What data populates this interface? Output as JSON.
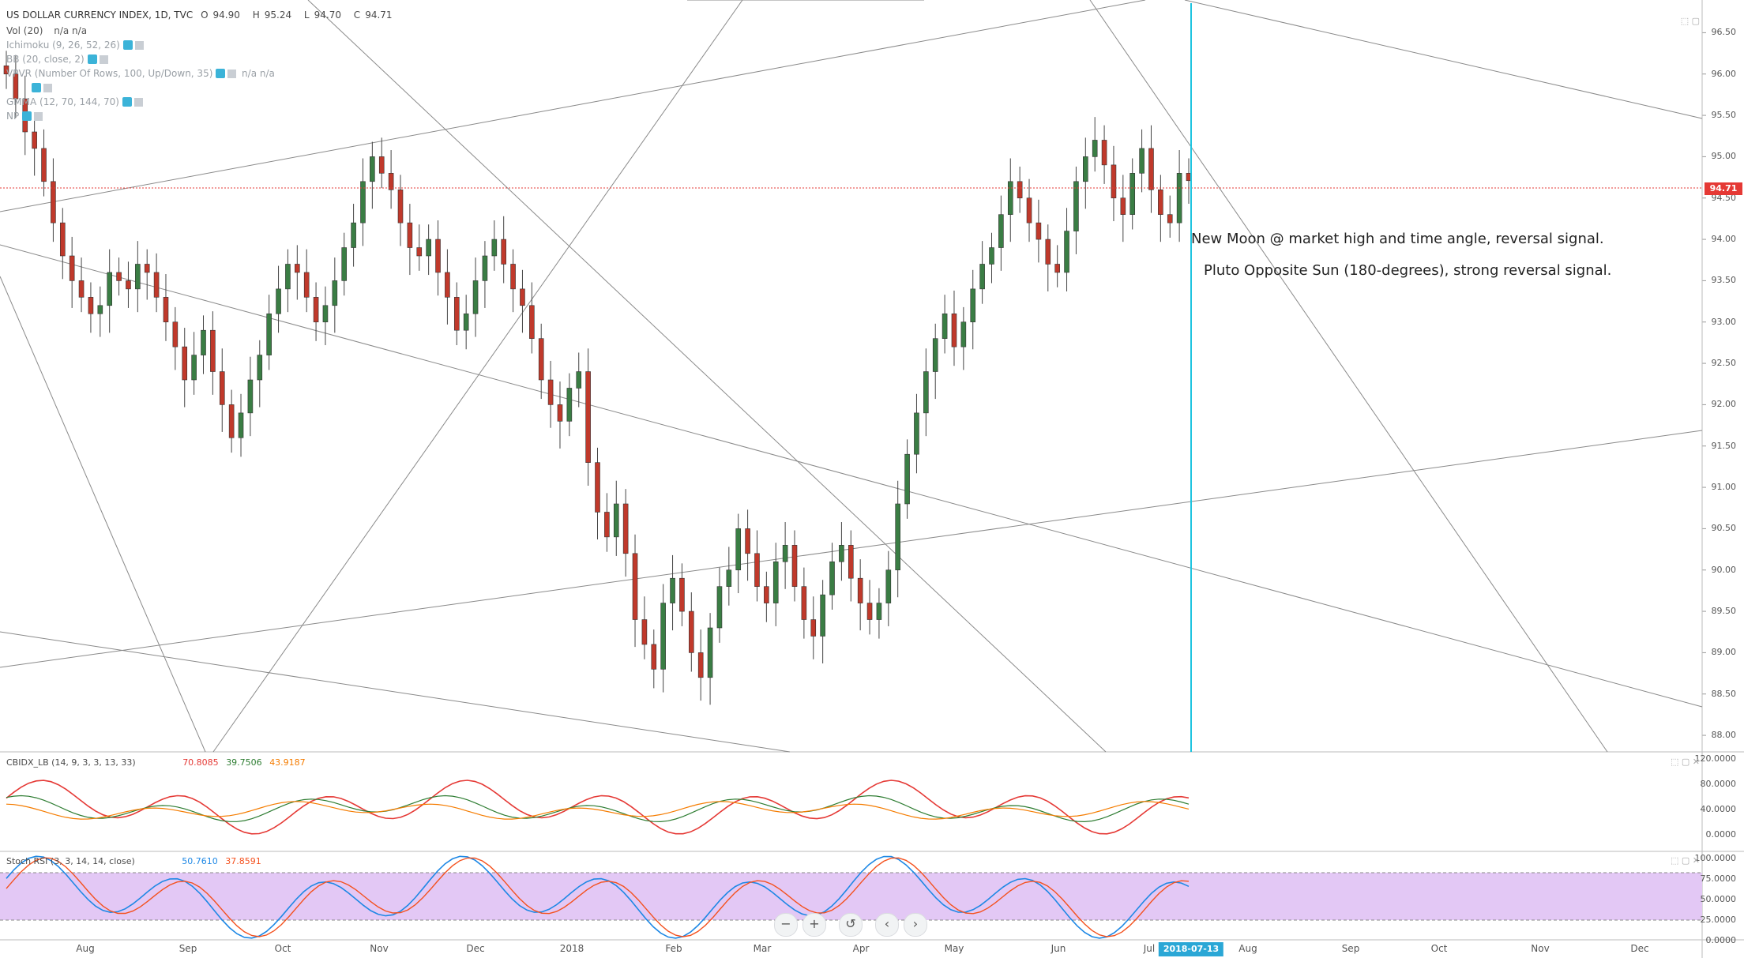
{
  "header": {
    "symbol": "US DOLLAR CURRENCY INDEX, 1D, TVC",
    "open_label": "O",
    "open": "94.90",
    "high_label": "H",
    "high": "95.24",
    "low_label": "L",
    "low": "94.70",
    "close_label": "C",
    "close": "94.71"
  },
  "indicators": [
    {
      "label": "Vol (20)",
      "values": "n/a  n/a"
    },
    {
      "label": "Ichimoku (9, 26, 52, 26)",
      "values": ""
    },
    {
      "label": "BB (20, close, 2)",
      "values": ""
    },
    {
      "label": "VPVR (Number Of Rows, 100, Up/Down, 35)",
      "values": "n/a   n/a"
    },
    {
      "label": "",
      "values": ""
    },
    {
      "label": "GMMA (12, 70, 144, 70)",
      "values": ""
    },
    {
      "label": "NP",
      "values": ""
    }
  ],
  "annotations": {
    "line1": "New Moon @ market high and time angle, reversal signal.",
    "line2": "Pluto Opposite Sun (180-degrees), strong reversal signal."
  },
  "price_tag": "94.71",
  "date_tag": "2018-07-13",
  "cbidx": {
    "label": "CBIDX_LB (14, 9, 3, 3, 13, 33)",
    "v1": "70.8085",
    "v2": "39.7506",
    "v3": "43.9187",
    "colors": {
      "v1": "#e53935",
      "v2": "#2e7d32",
      "v3": "#f57c00"
    }
  },
  "stoch": {
    "label": "Stoch RSI (3, 3, 14, 14, close)",
    "k": "50.7610",
    "d": "37.8591",
    "colors": {
      "k": "#1e88e5",
      "d": "#f4511e"
    }
  },
  "toolbar": {
    "zoom_out": "−",
    "zoom_in": "+",
    "reset": "↺",
    "prev": "‹",
    "next": "›"
  },
  "chart_data": {
    "type": "candlestick",
    "title": "US DOLLAR CURRENCY INDEX, 1D, TVC",
    "y_ticks": [
      "96.50",
      "96.00",
      "95.50",
      "95.00",
      "94.50",
      "94.00",
      "93.50",
      "93.00",
      "92.50",
      "92.00",
      "91.50",
      "91.00",
      "90.50",
      "90.00",
      "89.50",
      "89.00",
      "88.50",
      "88.00"
    ],
    "x_ticks": [
      "Aug",
      "Sep",
      "Oct",
      "Nov",
      "Dec",
      "2018",
      "Feb",
      "Mar",
      "Apr",
      "May",
      "Jun",
      "Jul",
      "Aug",
      "Sep",
      "Oct",
      "Nov",
      "Dec"
    ],
    "ylim": [
      87.8,
      96.8
    ],
    "closes": [
      96.0,
      95.7,
      95.3,
      95.1,
      94.7,
      94.2,
      93.8,
      93.5,
      93.3,
      93.1,
      93.2,
      93.6,
      93.5,
      93.4,
      93.7,
      93.6,
      93.3,
      93.0,
      92.7,
      92.3,
      92.6,
      92.9,
      92.4,
      92.0,
      91.6,
      91.9,
      92.3,
      92.6,
      93.1,
      93.4,
      93.7,
      93.6,
      93.3,
      93.0,
      93.2,
      93.5,
      93.9,
      94.2,
      94.7,
      95.0,
      94.8,
      94.6,
      94.2,
      93.9,
      93.8,
      94.0,
      93.6,
      93.3,
      92.9,
      93.1,
      93.5,
      93.8,
      94.0,
      93.7,
      93.4,
      93.2,
      92.8,
      92.3,
      92.0,
      91.8,
      92.2,
      92.4,
      91.3,
      90.7,
      90.4,
      90.8,
      90.2,
      89.4,
      89.1,
      88.8,
      89.6,
      89.9,
      89.5,
      89.0,
      88.7,
      89.3,
      89.8,
      90.0,
      90.5,
      90.2,
      89.8,
      89.6,
      90.1,
      90.3,
      89.8,
      89.4,
      89.2,
      89.7,
      90.1,
      90.3,
      89.9,
      89.6,
      89.4,
      89.6,
      90.0,
      90.8,
      91.4,
      91.9,
      92.4,
      92.8,
      93.1,
      92.7,
      93.0,
      93.4,
      93.7,
      93.9,
      94.3,
      94.7,
      94.5,
      94.2,
      94.0,
      93.7,
      93.6,
      94.1,
      94.7,
      95.0,
      95.2,
      94.9,
      94.5,
      94.3,
      94.8,
      95.1,
      94.6,
      94.3,
      94.2,
      94.8,
      94.71
    ],
    "trend_lines": true,
    "vertical_marker": "2018-07-13"
  }
}
